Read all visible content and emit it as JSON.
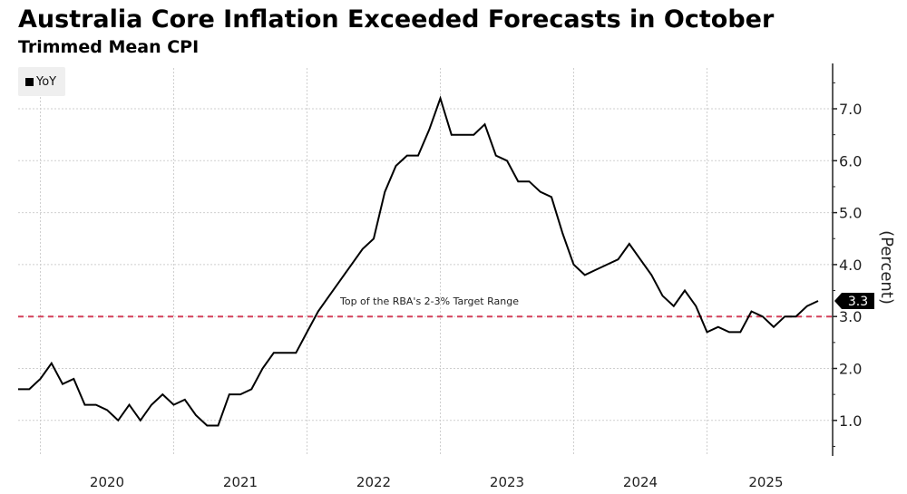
{
  "header": {
    "title": "Australia Core Inflation Exceeded Forecasts in October",
    "subtitle": "Trimmed Mean CPI"
  },
  "legend": {
    "label": "YoY"
  },
  "chart_data": {
    "type": "line",
    "title": "Australia Core Inflation Exceeded Forecasts in October",
    "subtitle": "Trimmed Mean CPI",
    "xlabel": "",
    "ylabel": "(Percent)",
    "ylim": [
      0.3,
      7.8
    ],
    "yticks": [
      1.0,
      2.0,
      3.0,
      4.0,
      5.0,
      6.0,
      7.0
    ],
    "ytick_labels": [
      "1.0",
      "2.0",
      "3.0",
      "4.0",
      "5.0",
      "6.0",
      "7.0"
    ],
    "x_start": "2019-11",
    "x_frequency": "monthly",
    "xtick_labels": [
      "2020",
      "2021",
      "2022",
      "2023",
      "2024",
      "2025"
    ],
    "grid": true,
    "legend_position": "top-left",
    "series": [
      {
        "name": "YoY",
        "color": "#000000",
        "values": [
          1.6,
          1.6,
          1.8,
          2.1,
          1.7,
          1.8,
          1.3,
          1.3,
          1.2,
          1.0,
          1.3,
          1.0,
          1.3,
          1.5,
          1.3,
          1.4,
          1.1,
          0.9,
          0.9,
          1.5,
          1.5,
          1.6,
          2.0,
          2.3,
          2.3,
          2.3,
          2.7,
          3.1,
          3.4,
          3.7,
          4.0,
          4.3,
          4.5,
          5.4,
          5.9,
          6.1,
          6.1,
          6.6,
          7.2,
          6.5,
          6.5,
          6.5,
          6.7,
          6.1,
          6.0,
          5.6,
          5.6,
          5.4,
          5.3,
          4.6,
          4.0,
          3.8,
          3.9,
          4.0,
          4.1,
          4.4,
          4.1,
          3.8,
          3.4,
          3.2,
          3.5,
          3.2,
          2.7,
          2.8,
          2.7,
          2.7,
          3.1,
          3.0,
          2.8,
          3.0,
          3.0,
          3.2,
          3.3
        ]
      }
    ],
    "reference_line": {
      "value": 3.0,
      "label": "Top of the RBA's 2-3% Target Range",
      "color": "#d4405a",
      "style": "dashed"
    },
    "last_value_label": "3.3"
  }
}
